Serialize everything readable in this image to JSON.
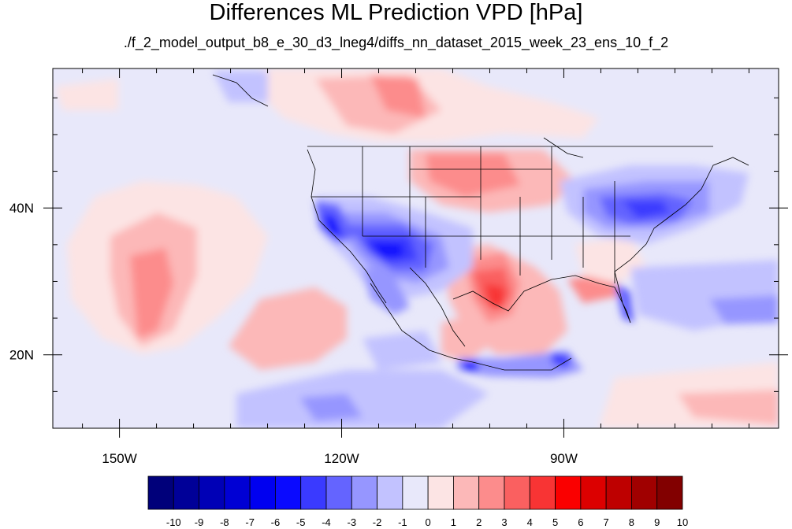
{
  "title": "Differences ML Prediction VPD [hPa]",
  "subtitle": "./f_2_model_output_b8_e_30_d3_lneg4/diffs_nn_dataset_2015_week_23_ens_10_f_2",
  "map": {
    "lon_range": [
      -159,
      -61
    ],
    "lat_range": [
      10,
      59
    ],
    "lon_ticks": [
      {
        "value": -150,
        "label": "150W"
      },
      {
        "value": -120,
        "label": "120W"
      },
      {
        "value": -90,
        "label": "90W"
      }
    ],
    "lat_ticks": [
      {
        "value": 40,
        "label": "40N"
      },
      {
        "value": 20,
        "label": "20N"
      }
    ]
  },
  "colorbar": {
    "levels": [
      "-10",
      "-9",
      "-8",
      "-7",
      "-6",
      "-5",
      "-4",
      "-3",
      "-2",
      "-1",
      "0",
      "1",
      "2",
      "3",
      "4",
      "5",
      "6",
      "7",
      "8",
      "9",
      "10"
    ],
    "colors": [
      "#00007a",
      "#000098",
      "#0000b6",
      "#0000d4",
      "#0000f0",
      "#0a0aff",
      "#3a3aff",
      "#6464ff",
      "#9696ff",
      "#c2c2ff",
      "#e8e8fa",
      "#fce4e4",
      "#fcb8b8",
      "#fc8c8c",
      "#fa6060",
      "#f83434",
      "#fa0000",
      "#dc0000",
      "#be0000",
      "#a00000",
      "#820000"
    ]
  }
}
